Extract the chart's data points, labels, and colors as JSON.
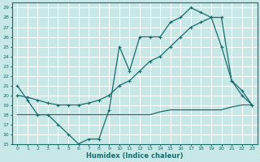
{
  "xlabel": "Humidex (Indice chaleur)",
  "bg_color": "#c8e8e8",
  "grid_color": "#ffffff",
  "line_color": "#1a6b6b",
  "xlim": [
    -0.5,
    23.5
  ],
  "ylim": [
    15,
    29.5
  ],
  "xticks": [
    0,
    1,
    2,
    3,
    4,
    5,
    6,
    7,
    8,
    9,
    10,
    11,
    12,
    13,
    14,
    15,
    16,
    17,
    18,
    19,
    20,
    21,
    22,
    23
  ],
  "yticks": [
    15,
    16,
    17,
    18,
    19,
    20,
    21,
    22,
    23,
    24,
    25,
    26,
    27,
    28,
    29
  ],
  "line1_x": [
    0,
    1,
    2,
    3,
    4,
    5,
    6,
    7,
    8,
    9,
    10,
    11,
    12,
    13,
    14,
    15,
    16,
    17,
    18,
    19,
    20,
    21,
    22,
    23
  ],
  "line1_y": [
    21,
    19.5,
    18,
    18,
    17,
    16,
    15,
    15.5,
    15.5,
    18.5,
    25,
    22.5,
    26,
    26,
    26,
    27.5,
    28,
    29,
    28.5,
    28,
    25,
    21.5,
    20.5,
    19
  ],
  "line2_x": [
    0,
    1,
    2,
    3,
    4,
    5,
    6,
    7,
    8,
    9,
    10,
    11,
    12,
    13,
    14,
    15,
    16,
    17,
    18,
    19,
    20,
    21,
    22,
    23
  ],
  "line2_y": [
    18,
    18,
    18,
    18,
    18,
    18,
    18,
    18,
    18,
    18,
    18,
    18,
    18,
    18,
    18.3,
    18.5,
    18.5,
    18.5,
    18.5,
    18.5,
    18.5,
    18.8,
    19,
    19
  ],
  "line3_x": [
    0,
    1,
    2,
    3,
    4,
    5,
    6,
    7,
    8,
    9,
    10,
    11,
    12,
    13,
    14,
    15,
    16,
    17,
    18,
    19,
    20,
    21,
    22,
    23
  ],
  "line3_y": [
    20,
    19.8,
    19.5,
    19.2,
    19,
    19,
    19,
    19.2,
    19.5,
    20,
    21,
    21.5,
    22.5,
    23.5,
    24,
    25,
    26,
    27,
    27.5,
    28,
    28,
    21.5,
    20,
    19
  ]
}
